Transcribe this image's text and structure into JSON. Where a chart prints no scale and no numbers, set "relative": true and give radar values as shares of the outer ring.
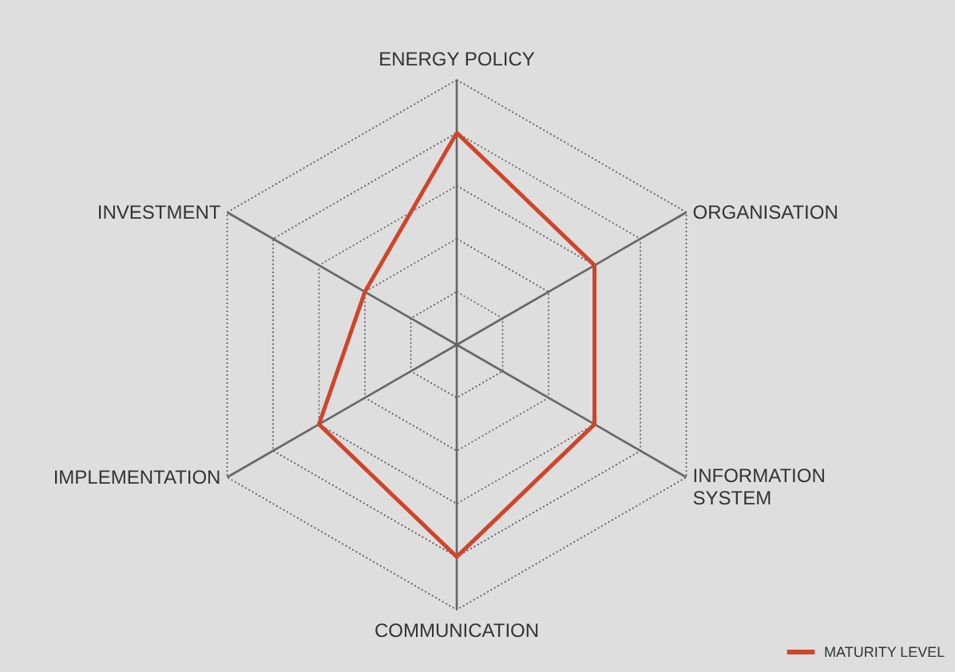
{
  "chart_data": {
    "type": "radar",
    "relative": true,
    "grid": true,
    "legend": "bottom right",
    "categories": [
      "ENERGY POLICY",
      "ORGANISATION",
      "INFORMATION SYSTEM",
      "COMMUNICATION",
      "IMPLEMENTATION",
      "INVESTMENT"
    ],
    "series": [
      {
        "name": "MATURITY LEVEL",
        "color": "#d0452a",
        "values": [
          0.8,
          0.6,
          0.6,
          0.8,
          0.6,
          0.4
        ]
      }
    ]
  }
}
